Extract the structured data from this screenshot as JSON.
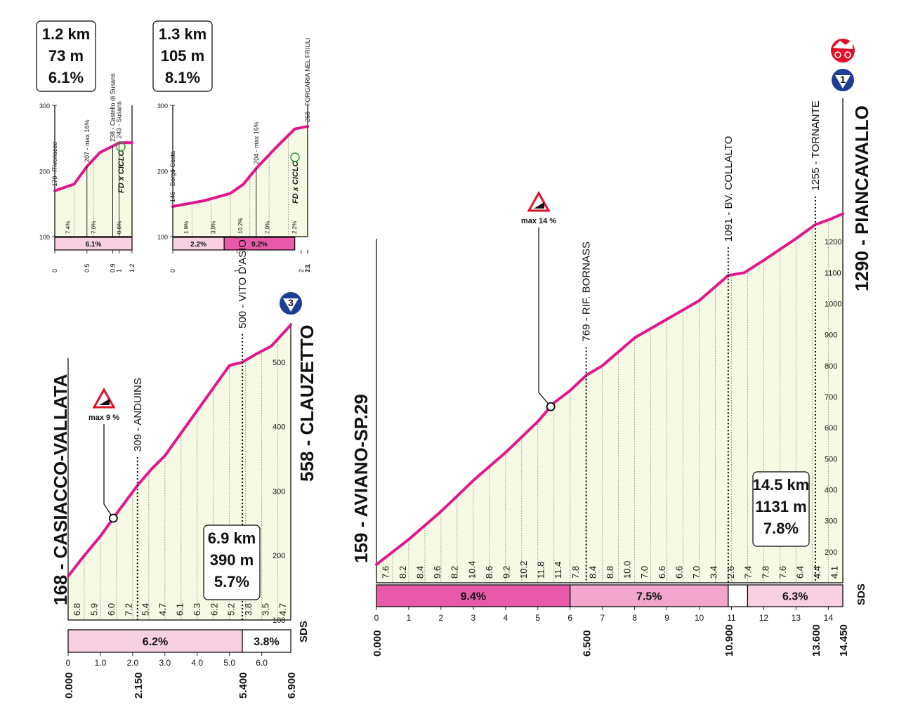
{
  "chart_data": [
    {
      "type": "area",
      "name_id": "inset-susans",
      "summary": [
        "1.2 km",
        "73 m",
        "6.1%"
      ],
      "ylim": [
        100,
        300
      ],
      "y_ticks": [
        "300",
        "200",
        "100"
      ],
      "x_ticks": [
        "0",
        "0.5",
        "0.9",
        "1",
        "1.2"
      ],
      "profile": [
        [
          0,
          170
        ],
        [
          0.3,
          180
        ],
        [
          0.5,
          207
        ],
        [
          0.7,
          228
        ],
        [
          0.9,
          238
        ],
        [
          1.0,
          243
        ],
        [
          1.2,
          243
        ]
      ],
      "waypoints": [
        {
          "km": 0,
          "label": "170 - Tiveriacco"
        },
        {
          "km": 0.5,
          "label": "207 - max 16%"
        },
        {
          "km": 0.9,
          "label": "238 - Castello di Susans"
        },
        {
          "km": 1.0,
          "label": "243 - Susans"
        }
      ],
      "km_grades": [
        "7.4%",
        "7.0%",
        "0.6%"
      ],
      "segments": [
        {
          "from": 0,
          "to": 1.2,
          "label": "6.1%"
        }
      ],
      "logo": "FD x CICLO"
    },
    {
      "type": "area",
      "name_id": "inset-forgaria",
      "summary": [
        "1.3 km",
        "105 m",
        "8.1%"
      ],
      "ylim": [
        100,
        300
      ],
      "y_ticks": [
        "300",
        "200",
        "100"
      ],
      "x_ticks": [
        "0",
        "1",
        "13",
        "2",
        "2.1"
      ],
      "profile": [
        [
          0,
          146
        ],
        [
          0.5,
          155
        ],
        [
          0.9,
          166
        ],
        [
          1.1,
          180
        ],
        [
          1.3,
          204
        ],
        [
          1.6,
          235
        ],
        [
          1.9,
          264
        ],
        [
          2.1,
          268
        ]
      ],
      "waypoints": [
        {
          "km": 0,
          "label": "146 - Borgo Costa"
        },
        {
          "km": 1.3,
          "label": "204 - max 16%"
        },
        {
          "km": 2.1,
          "label": "268 - FORGARIA NEL FRIULI"
        }
      ],
      "km_grades": [
        "1.9%",
        "3.9%",
        "10.2%",
        "7.9%",
        "2.2%"
      ],
      "segments": [
        {
          "from": 0,
          "to": 0.8,
          "label": "2.2%"
        },
        {
          "from": 0.8,
          "to": 1.9,
          "label": "9.2%"
        }
      ],
      "logo": "FD x CICLO"
    },
    {
      "type": "area",
      "name_id": "climb-clauzetto",
      "start_label": "168 - CASIACCO-VALLATA",
      "end_label": "558 - CLAUZETTO",
      "summary": [
        "6.9 km",
        "390 m",
        "5.7%"
      ],
      "gpm_badge": "3",
      "max_label": "max 9 %",
      "ylim": [
        100,
        550
      ],
      "y_ticks": [
        "500",
        "400",
        "300",
        "200",
        "100"
      ],
      "x_ticks": [
        "0",
        "1.0",
        "2.0",
        "3.0",
        "4.0",
        "5.0",
        "6.0"
      ],
      "bottom_km": [
        "0.000",
        "2.150",
        "5.400",
        "6.900"
      ],
      "profile": [
        [
          0,
          168
        ],
        [
          0.5,
          200
        ],
        [
          1.0,
          230
        ],
        [
          1.5,
          265
        ],
        [
          2.15,
          309
        ],
        [
          2.6,
          335
        ],
        [
          3.0,
          355
        ],
        [
          3.5,
          390
        ],
        [
          4.0,
          425
        ],
        [
          4.5,
          460
        ],
        [
          5.0,
          495
        ],
        [
          5.4,
          500
        ],
        [
          5.8,
          512
        ],
        [
          6.3,
          525
        ],
        [
          6.9,
          558
        ]
      ],
      "max_point_km": 1.4,
      "waypoints": [
        {
          "km": 2.15,
          "label": "309 - ANDUINS"
        },
        {
          "km": 5.4,
          "label": "500 - VITO D'ASIO"
        }
      ],
      "km_grades": [
        "6.8",
        "5.9",
        "6.0",
        "7.2",
        "5.4",
        "4.7",
        "6.1",
        "6.3",
        "6.2",
        "5.2",
        "3.8",
        "3.5",
        "4.7"
      ],
      "segments": [
        {
          "from": 0,
          "to": 5.4,
          "label": "6.2%"
        },
        {
          "from": 5.4,
          "to": 6.9,
          "label": "3.8%"
        }
      ],
      "brand": "SDS"
    },
    {
      "type": "area",
      "name_id": "climb-piancavallo",
      "start_label": "159 - AVIANO-SP.29",
      "end_label": "1290 - PIANCAVALLO",
      "summary": [
        "14.5 km",
        "1131 m",
        "7.8%"
      ],
      "gpm_badge": "1",
      "max_label": "max 14 %",
      "ylim": [
        100,
        1300
      ],
      "y_ticks": [
        "1200",
        "1100",
        "1000",
        "900",
        "800",
        "700",
        "600",
        "500",
        "400",
        "300",
        "200"
      ],
      "x_ticks": [
        "0",
        "1",
        "2",
        "3",
        "4",
        "5",
        "6",
        "7",
        "8",
        "9",
        "10",
        "11",
        "12",
        "13",
        "14"
      ],
      "bottom_km": [
        "0.000",
        "6.500",
        "10.900",
        "13.600",
        "14.450"
      ],
      "profile": [
        [
          0,
          159
        ],
        [
          1,
          240
        ],
        [
          2,
          330
        ],
        [
          3,
          430
        ],
        [
          4,
          520
        ],
        [
          5,
          620
        ],
        [
          5.5,
          680
        ],
        [
          6,
          720
        ],
        [
          6.5,
          769
        ],
        [
          7,
          800
        ],
        [
          8,
          890
        ],
        [
          9,
          950
        ],
        [
          10,
          1010
        ],
        [
          10.9,
          1091
        ],
        [
          11.4,
          1100
        ],
        [
          12,
          1140
        ],
        [
          13,
          1210
        ],
        [
          13.6,
          1255
        ],
        [
          14,
          1270
        ],
        [
          14.45,
          1290
        ]
      ],
      "max_point_km": 5.4,
      "waypoints": [
        {
          "km": 6.5,
          "label": "769 - RIF. BORNASS"
        },
        {
          "km": 10.9,
          "label": "1091 - BV. COLLALTO"
        },
        {
          "km": 13.6,
          "label": "1255 - TORNANTE"
        }
      ],
      "km_grades": [
        "7.6",
        "8.2",
        "8.4",
        "9.6",
        "8.2",
        "10.4",
        "8.6",
        "9.2",
        "10.2",
        "11.8",
        "11.4",
        "7.8",
        "8.4",
        "8.8",
        "10.0",
        "7.0",
        "6.6",
        "6.6",
        "7.0",
        "3.4",
        "2.6",
        "7.4",
        "7.8",
        "7.6",
        "6.4",
        "4.4",
        "4.1"
      ],
      "segments": [
        {
          "from": 0,
          "to": 6,
          "label": "9.4%"
        },
        {
          "from": 6,
          "to": 10.9,
          "label": "7.5%"
        },
        {
          "from": 10.9,
          "to": 11.5,
          "label": ""
        },
        {
          "from": 11.5,
          "to": 14.45,
          "label": "6.3%"
        }
      ],
      "brand": "SDS"
    }
  ]
}
